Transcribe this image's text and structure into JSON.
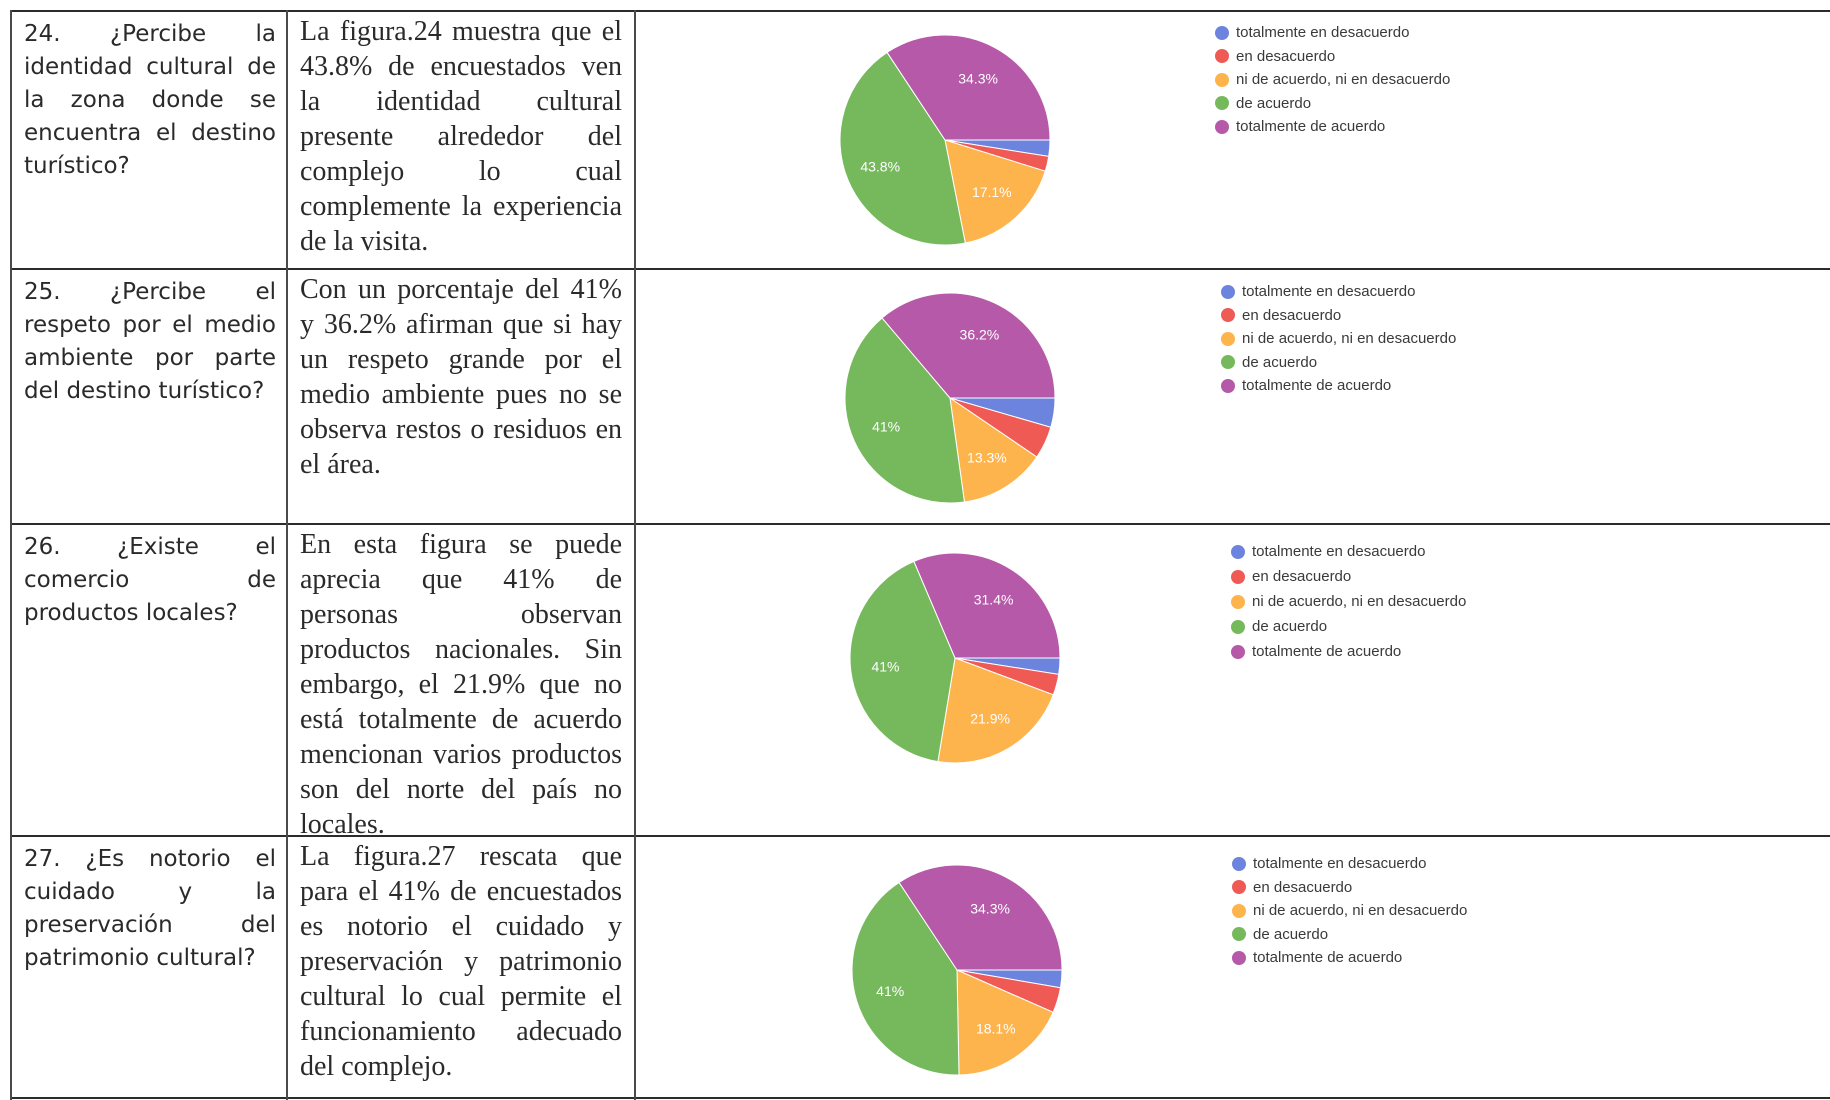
{
  "legend_labels": [
    "totalmente en desacuerdo",
    "en desacuerdo",
    "ni de acuerdo, ni en desacuerdo",
    "de acuerdo",
    "totalmente de acuerdo"
  ],
  "slice_colors": [
    "#6c84dd",
    "#f05a55",
    "#fdb44d",
    "#76b95c",
    "#b659a8"
  ],
  "rows": [
    {
      "question": "24.  ¿Percibe la identidad cultural de la zona donde se encuentra el destino turístico?",
      "description": "La figura.24 muestra que el 43.8% de encuestados ven la identidad cultural presente alrededor del complejo lo cual complemente la experiencia de la visita."
    },
    {
      "question": "25. ¿Percibe el respeto por el medio ambiente por parte del destino turístico?",
      "description": "Con un porcentaje del 41% y 36.2% afirman que si hay un respeto grande por el medio ambiente pues no se observa restos o residuos en el área."
    },
    {
      "question": "26. ¿Existe el comercio de productos locales?",
      "description": "En esta figura se puede aprecia que 41% de personas observan productos nacionales. Sin embargo, el 21.9% que no está totalmente de acuerdo mencionan varios productos son del norte del país no locales."
    },
    {
      "question": "27. ¿Es notorio el cuidado y la preservación del patrimonio cultural?",
      "description": "La figura.27 rescata que para el 41% de encuestados es notorio el cuidado y preservación y patrimonio cultural lo cual permite el funcionamiento adecuado del complejo."
    }
  ],
  "chart_data": [
    {
      "type": "pie",
      "labels": [
        "totalmente en desacuerdo",
        "en desacuerdo",
        "ni de acuerdo, ni en desacuerdo",
        "de acuerdo",
        "totalmente de acuerdo"
      ],
      "values": [
        2.5,
        2.3,
        17.1,
        43.8,
        34.3
      ],
      "data_labels": [
        "",
        "",
        "17.1%",
        "43.8%",
        "34.3%"
      ],
      "legend_position": "right"
    },
    {
      "type": "pie",
      "labels": [
        "totalmente en desacuerdo",
        "en desacuerdo",
        "ni de acuerdo, ni en desacuerdo",
        "de acuerdo",
        "totalmente de acuerdo"
      ],
      "values": [
        4.5,
        5.0,
        13.3,
        41.0,
        36.2
      ],
      "data_labels": [
        "",
        "",
        "13.3%",
        "41%",
        "36.2%"
      ],
      "legend_position": "right"
    },
    {
      "type": "pie",
      "labels": [
        "totalmente en desacuerdo",
        "en desacuerdo",
        "ni de acuerdo, ni en desacuerdo",
        "de acuerdo",
        "totalmente de acuerdo"
      ],
      "values": [
        2.5,
        3.2,
        21.9,
        41.0,
        31.4
      ],
      "data_labels": [
        "",
        "",
        "21.9%",
        "41%",
        "31.4%"
      ],
      "legend_position": "right"
    },
    {
      "type": "pie",
      "labels": [
        "totalmente en desacuerdo",
        "en desacuerdo",
        "ni de acuerdo, ni en desacuerdo",
        "de acuerdo",
        "totalmente de acuerdo"
      ],
      "values": [
        2.7,
        3.9,
        18.1,
        41.0,
        34.3
      ],
      "data_labels": [
        "",
        "",
        "18.1%",
        "41%",
        "34.3%"
      ],
      "legend_position": "right"
    }
  ]
}
